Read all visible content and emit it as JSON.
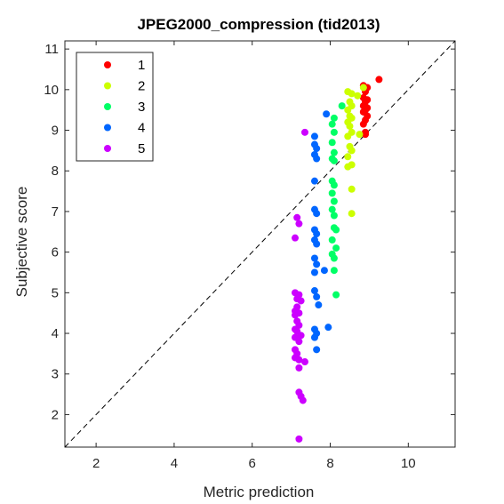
{
  "chart_data": {
    "type": "scatter",
    "title": "JPEG2000_compression (tid2013)",
    "xlabel": "Metric prediction",
    "ylabel": "Subjective score",
    "xlim": [
      1.2,
      11.2
    ],
    "ylim": [
      1.2,
      11.2
    ],
    "xticks": [
      2,
      4,
      6,
      8,
      10
    ],
    "yticks": [
      2,
      3,
      4,
      5,
      6,
      7,
      8,
      9,
      10,
      11
    ],
    "grid": false,
    "diagonal_reference_line": "dashed",
    "legend_position": "top-left",
    "series": [
      {
        "name": "1",
        "color": "#ff0000",
        "points": [
          [
            9.25,
            10.25
          ],
          [
            8.85,
            10.1
          ],
          [
            8.95,
            10.05
          ],
          [
            8.9,
            9.95
          ],
          [
            8.85,
            9.8
          ],
          [
            8.95,
            9.75
          ],
          [
            8.9,
            9.7
          ],
          [
            8.85,
            9.6
          ],
          [
            8.95,
            9.55
          ],
          [
            8.9,
            9.5
          ],
          [
            8.85,
            9.45
          ],
          [
            8.95,
            9.35
          ],
          [
            8.9,
            9.25
          ],
          [
            8.85,
            9.15
          ],
          [
            8.9,
            8.95
          ],
          [
            8.9,
            8.9
          ]
        ]
      },
      {
        "name": "2",
        "color": "#ccff00",
        "points": [
          [
            8.85,
            10.05
          ],
          [
            8.45,
            9.95
          ],
          [
            8.55,
            9.9
          ],
          [
            8.7,
            9.85
          ],
          [
            8.5,
            9.7
          ],
          [
            8.55,
            9.6
          ],
          [
            8.45,
            9.5
          ],
          [
            8.5,
            9.35
          ],
          [
            8.55,
            9.3
          ],
          [
            8.45,
            9.2
          ],
          [
            8.5,
            9.1
          ],
          [
            8.55,
            8.95
          ],
          [
            8.45,
            8.85
          ],
          [
            8.75,
            8.9
          ],
          [
            8.5,
            8.6
          ],
          [
            8.55,
            8.5
          ],
          [
            8.45,
            8.35
          ],
          [
            8.55,
            8.15
          ],
          [
            8.45,
            8.1
          ],
          [
            8.55,
            7.55
          ],
          [
            8.55,
            6.95
          ]
        ]
      },
      {
        "name": "3",
        "color": "#00ff66",
        "points": [
          [
            8.3,
            9.6
          ],
          [
            8.1,
            9.3
          ],
          [
            8.05,
            9.15
          ],
          [
            8.1,
            8.95
          ],
          [
            8.05,
            8.7
          ],
          [
            8.1,
            8.45
          ],
          [
            8.05,
            8.3
          ],
          [
            8.1,
            8.25
          ],
          [
            8.05,
            7.75
          ],
          [
            8.1,
            7.65
          ],
          [
            8.05,
            7.45
          ],
          [
            8.1,
            7.25
          ],
          [
            8.05,
            7.05
          ],
          [
            8.1,
            6.9
          ],
          [
            8.1,
            6.6
          ],
          [
            8.15,
            6.55
          ],
          [
            8.05,
            6.3
          ],
          [
            8.15,
            6.1
          ],
          [
            8.05,
            5.95
          ],
          [
            8.1,
            5.85
          ],
          [
            8.1,
            5.55
          ],
          [
            8.15,
            4.95
          ]
        ]
      },
      {
        "name": "4",
        "color": "#0066ff",
        "points": [
          [
            7.9,
            9.4
          ],
          [
            7.6,
            8.85
          ],
          [
            7.6,
            8.65
          ],
          [
            7.65,
            8.55
          ],
          [
            7.6,
            8.4
          ],
          [
            7.65,
            8.3
          ],
          [
            7.6,
            7.75
          ],
          [
            7.6,
            7.05
          ],
          [
            7.65,
            6.95
          ],
          [
            7.6,
            6.55
          ],
          [
            7.65,
            6.45
          ],
          [
            7.6,
            6.3
          ],
          [
            7.65,
            6.2
          ],
          [
            7.6,
            5.85
          ],
          [
            7.65,
            5.7
          ],
          [
            7.6,
            5.5
          ],
          [
            7.85,
            5.55
          ],
          [
            7.6,
            5.05
          ],
          [
            7.65,
            4.9
          ],
          [
            7.7,
            4.7
          ],
          [
            7.95,
            4.15
          ],
          [
            7.6,
            4.1
          ],
          [
            7.65,
            4.0
          ],
          [
            7.6,
            3.9
          ],
          [
            7.65,
            3.6
          ]
        ]
      },
      {
        "name": "5",
        "color": "#cc00ff",
        "points": [
          [
            7.35,
            8.95
          ],
          [
            7.15,
            6.85
          ],
          [
            7.2,
            6.7
          ],
          [
            7.1,
            6.35
          ],
          [
            7.1,
            5.0
          ],
          [
            7.2,
            4.95
          ],
          [
            7.15,
            4.85
          ],
          [
            7.25,
            4.8
          ],
          [
            7.15,
            4.65
          ],
          [
            7.1,
            4.55
          ],
          [
            7.2,
            4.5
          ],
          [
            7.1,
            4.45
          ],
          [
            7.15,
            4.3
          ],
          [
            7.2,
            4.2
          ],
          [
            7.1,
            4.1
          ],
          [
            7.15,
            4.05
          ],
          [
            7.25,
            3.95
          ],
          [
            7.1,
            3.9
          ],
          [
            7.2,
            3.8
          ],
          [
            7.1,
            3.6
          ],
          [
            7.15,
            3.5
          ],
          [
            7.1,
            3.4
          ],
          [
            7.2,
            3.35
          ],
          [
            7.35,
            3.3
          ],
          [
            7.2,
            3.15
          ],
          [
            7.2,
            2.55
          ],
          [
            7.25,
            2.45
          ],
          [
            7.3,
            2.35
          ],
          [
            7.2,
            1.4
          ]
        ]
      }
    ]
  }
}
